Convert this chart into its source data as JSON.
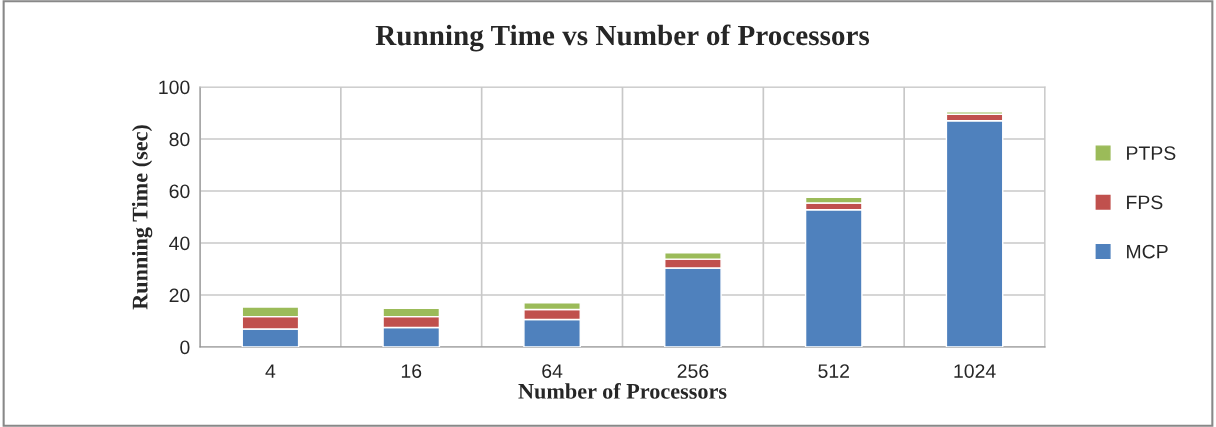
{
  "chart_data": {
    "type": "bar",
    "title": "Running Time vs Number of Processors",
    "xlabel": "Number of Processors",
    "ylabel": "Running Time (sec)",
    "categories": [
      "4",
      "16",
      "64",
      "256",
      "512",
      "1024"
    ],
    "stacked": true,
    "series": [
      {
        "name": "MCP",
        "color": "#4f81bd",
        "values": [
          6.9,
          7.5,
          10.6,
          30.4,
          52.8,
          87.0
        ]
      },
      {
        "name": "FPS",
        "color": "#c0504d",
        "values": [
          4.8,
          4.2,
          3.8,
          3.4,
          2.6,
          2.5
        ]
      },
      {
        "name": "PTPS",
        "color": "#9bbb59",
        "values": [
          3.7,
          3.2,
          2.6,
          2.4,
          2.2,
          1.0
        ]
      }
    ],
    "ylim": [
      0,
      100
    ],
    "yticks": [
      0,
      20,
      40,
      60,
      80,
      100
    ],
    "grid": true,
    "legend": "right"
  }
}
